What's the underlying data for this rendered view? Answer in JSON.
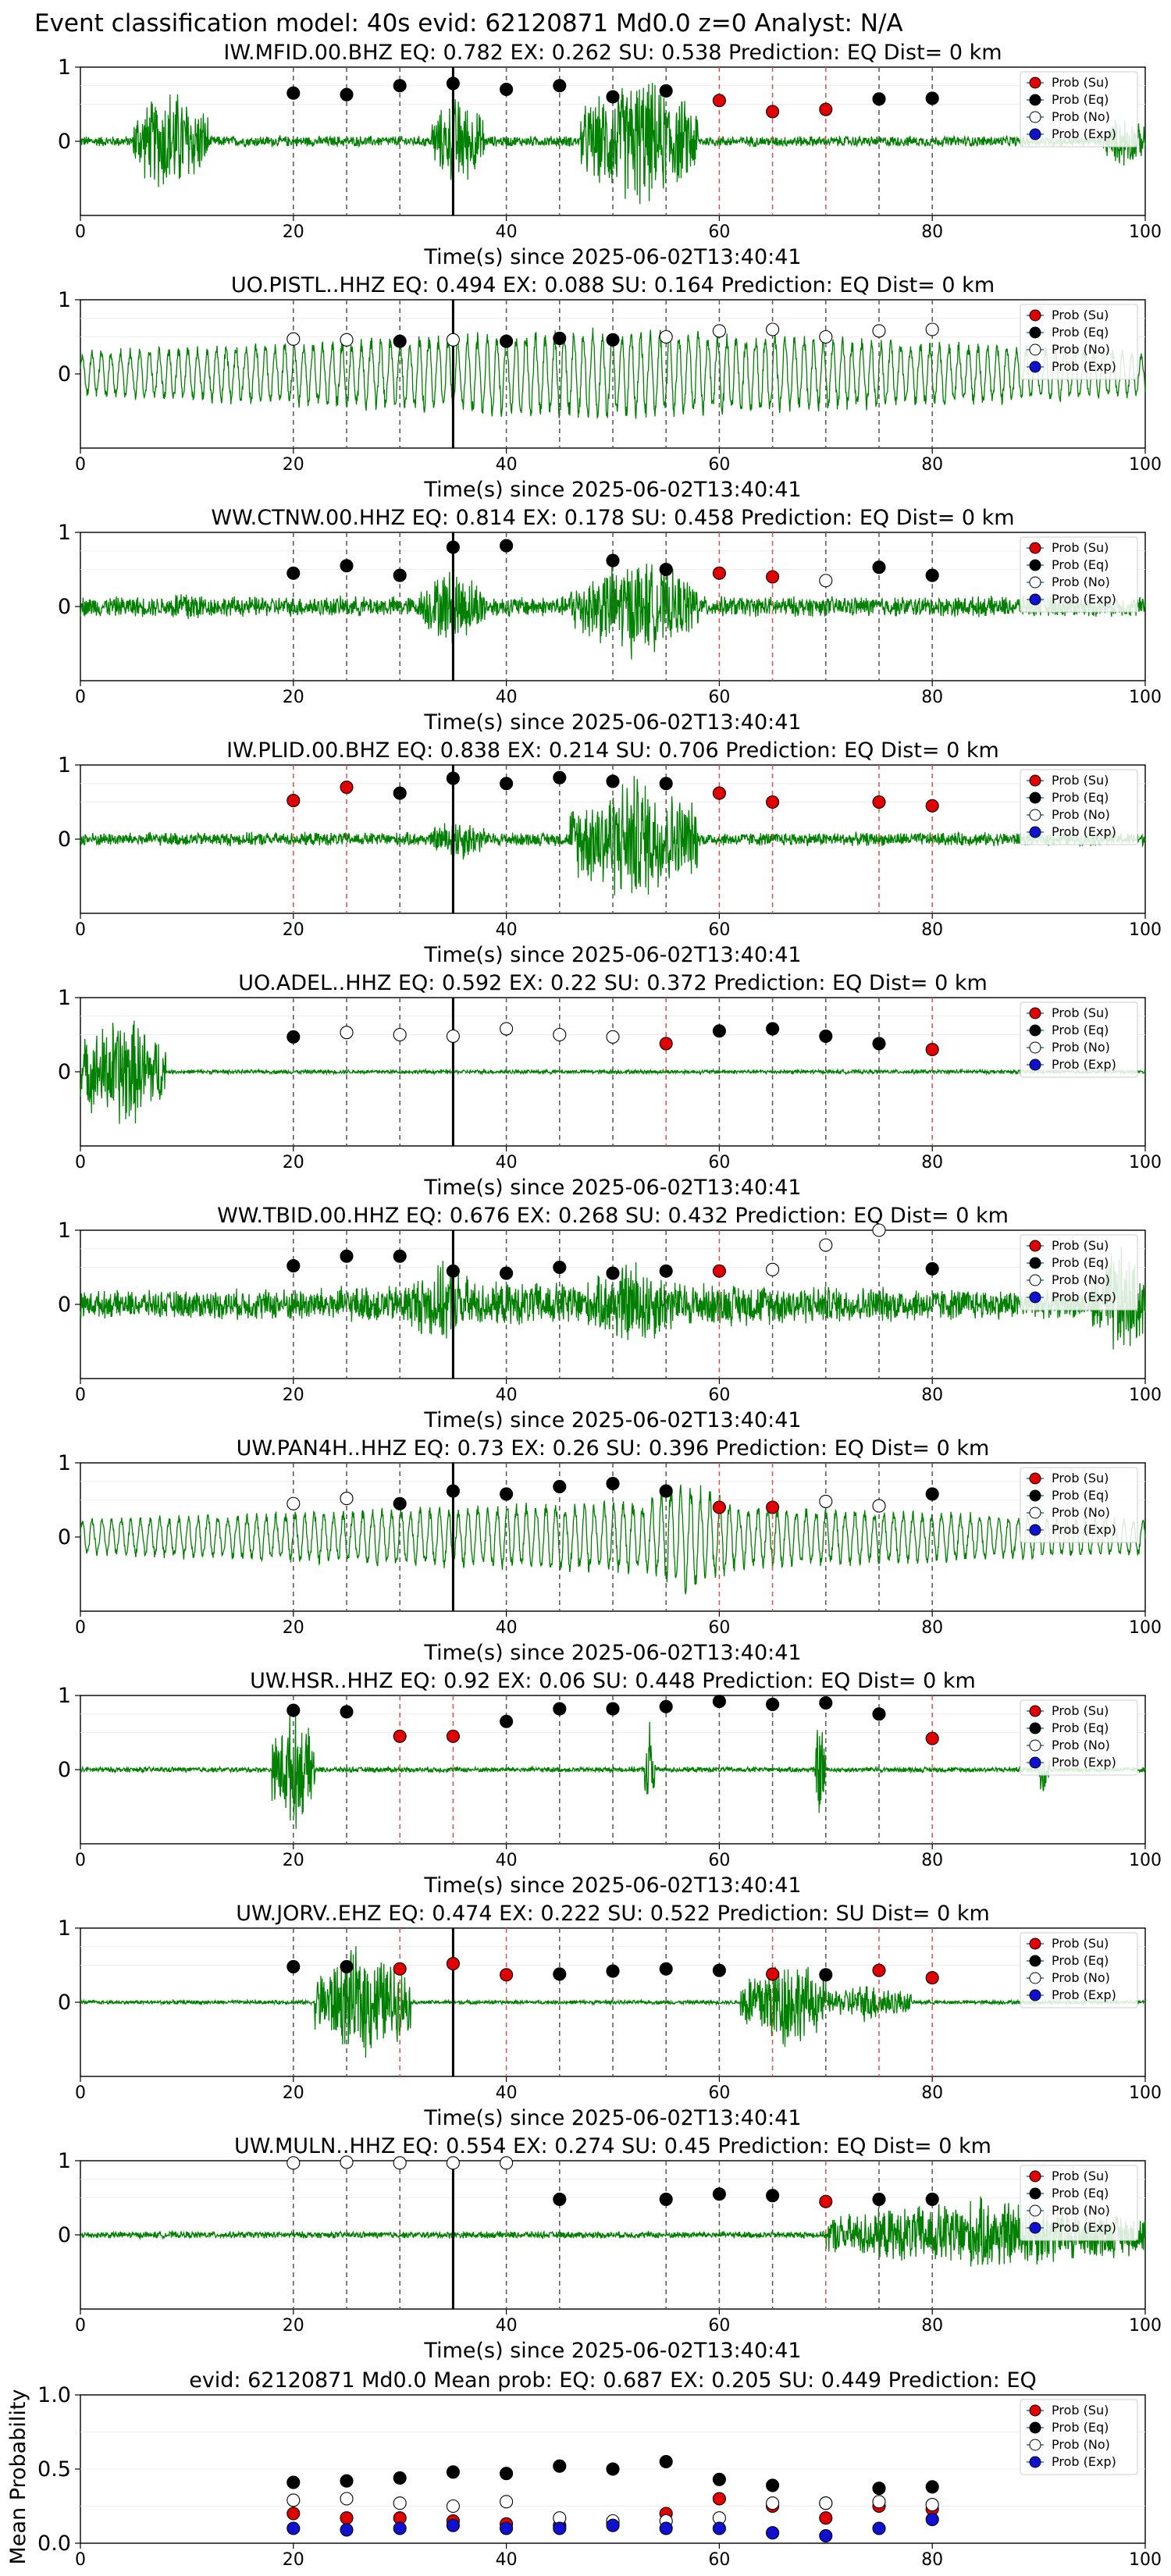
{
  "suptitle": "Event classification model: 40s evid: 62120871 Md0.0 z=0 Analyst: N/A",
  "xlabel": "Time(s) since 2025-06-02T13:40:41",
  "legend": [
    {
      "label": "Prob (Su)",
      "color": "#e00000",
      "fill": "red"
    },
    {
      "label": "Prob (Eq)",
      "color": "#000000",
      "fill": "black"
    },
    {
      "label": "Prob (No)",
      "color": "#ffffff",
      "fill": "white"
    },
    {
      "label": "Prob (Exp)",
      "color": "#1010d0",
      "fill": "blue"
    }
  ],
  "colors": {
    "waveform": "#008000",
    "su": "#e00000",
    "eq": "#000000",
    "no": "#ffffff",
    "exp": "#1010d0"
  },
  "chart_data": [
    {
      "type": "scatter",
      "title": "IW.MFID.00.BHZ   EQ: 0.782  EX: 0.262  SU: 0.538   Prediction: EQ    Dist= 0 km",
      "xlim": [
        0,
        100
      ],
      "ylim": [
        -1,
        1
      ],
      "xticks": [
        0,
        20,
        40,
        60,
        80,
        100
      ],
      "yticks": [
        0,
        1
      ],
      "pick_line": 35,
      "waveform": {
        "activity": [
          [
            5,
            12,
            0.85
          ],
          [
            33,
            38,
            0.7
          ],
          [
            47,
            58,
            1.0
          ],
          [
            96,
            100,
            0.4
          ]
        ],
        "base": 0.08
      },
      "points": [
        [
          20,
          0.65,
          "eq"
        ],
        [
          25,
          0.63,
          "eq"
        ],
        [
          30,
          0.75,
          "eq"
        ],
        [
          35,
          0.78,
          "eq"
        ],
        [
          40,
          0.7,
          "eq"
        ],
        [
          45,
          0.75,
          "eq"
        ],
        [
          50,
          0.6,
          "eq"
        ],
        [
          55,
          0.68,
          "eq"
        ],
        [
          60,
          0.55,
          "su"
        ],
        [
          65,
          0.4,
          "su"
        ],
        [
          70,
          0.43,
          "su"
        ],
        [
          75,
          0.57,
          "eq"
        ],
        [
          80,
          0.58,
          "eq"
        ]
      ]
    },
    {
      "type": "scatter",
      "title": "UO.PISTL..HHZ   EQ: 0.494  EX: 0.088  SU: 0.164   Prediction: EQ    Dist= 0 km",
      "xlim": [
        0,
        100
      ],
      "ylim": [
        -1,
        1
      ],
      "xticks": [
        0,
        20,
        40,
        60,
        80,
        100
      ],
      "yticks": [
        0,
        1
      ],
      "pick_line": 35,
      "waveform": {
        "activity": [
          [
            0,
            100,
            0.7
          ]
        ],
        "base": 0.2,
        "oscillatory": true
      },
      "points": [
        [
          20,
          0.47,
          "no"
        ],
        [
          25,
          0.46,
          "no"
        ],
        [
          30,
          0.44,
          "eq"
        ],
        [
          35,
          0.46,
          "no"
        ],
        [
          40,
          0.44,
          "eq"
        ],
        [
          45,
          0.48,
          "eq"
        ],
        [
          50,
          0.46,
          "eq"
        ],
        [
          55,
          0.5,
          "no"
        ],
        [
          60,
          0.58,
          "no"
        ],
        [
          65,
          0.6,
          "no"
        ],
        [
          70,
          0.5,
          "no"
        ],
        [
          75,
          0.58,
          "no"
        ],
        [
          80,
          0.6,
          "no"
        ]
      ]
    },
    {
      "type": "scatter",
      "title": "WW.CTNW.00.HHZ   EQ: 0.814  EX: 0.178  SU: 0.458   Prediction: EQ    Dist= 0 km",
      "xlim": [
        0,
        100
      ],
      "ylim": [
        -1,
        1
      ],
      "xticks": [
        0,
        20,
        40,
        60,
        80,
        100
      ],
      "yticks": [
        0,
        1
      ],
      "pick_line": 35,
      "waveform": {
        "activity": [
          [
            8,
            12,
            0.3
          ],
          [
            32,
            38,
            0.6
          ],
          [
            46,
            58,
            0.75
          ]
        ],
        "base": 0.15
      },
      "points": [
        [
          20,
          0.45,
          "eq"
        ],
        [
          25,
          0.55,
          "eq"
        ],
        [
          30,
          0.42,
          "eq"
        ],
        [
          35,
          0.8,
          "eq"
        ],
        [
          40,
          0.82,
          "eq"
        ],
        [
          50,
          0.62,
          "eq"
        ],
        [
          55,
          0.5,
          "eq"
        ],
        [
          60,
          0.45,
          "su"
        ],
        [
          65,
          0.4,
          "su"
        ],
        [
          70,
          0.35,
          "no"
        ],
        [
          75,
          0.53,
          "eq"
        ],
        [
          80,
          0.42,
          "eq"
        ]
      ]
    },
    {
      "type": "scatter",
      "title": "IW.PLID.00.BHZ   EQ: 0.838  EX: 0.214  SU: 0.706   Prediction: EQ    Dist= 0 km",
      "xlim": [
        0,
        100
      ],
      "ylim": [
        -1,
        1
      ],
      "xticks": [
        0,
        20,
        40,
        60,
        80,
        100
      ],
      "yticks": [
        0,
        1
      ],
      "pick_line": 35,
      "waveform": {
        "activity": [
          [
            33,
            38,
            0.35
          ],
          [
            46,
            58,
            1.0
          ]
        ],
        "base": 0.1
      },
      "points": [
        [
          20,
          0.52,
          "su"
        ],
        [
          25,
          0.7,
          "su"
        ],
        [
          30,
          0.62,
          "eq"
        ],
        [
          35,
          0.82,
          "eq"
        ],
        [
          40,
          0.75,
          "eq"
        ],
        [
          45,
          0.83,
          "eq"
        ],
        [
          50,
          0.78,
          "eq"
        ],
        [
          55,
          0.75,
          "eq"
        ],
        [
          60,
          0.62,
          "su"
        ],
        [
          65,
          0.5,
          "su"
        ],
        [
          75,
          0.5,
          "su"
        ],
        [
          80,
          0.45,
          "su"
        ]
      ]
    },
    {
      "type": "scatter",
      "title": "UO.ADEL..HHZ   EQ: 0.592  EX: 0.22  SU: 0.372   Prediction: EQ    Dist= 0 km",
      "xlim": [
        0,
        100
      ],
      "ylim": [
        -1,
        1
      ],
      "xticks": [
        0,
        20,
        40,
        60,
        80,
        100
      ],
      "yticks": [
        0,
        1
      ],
      "pick_line": 35,
      "waveform": {
        "activity": [
          [
            0,
            8,
            0.9
          ]
        ],
        "base": 0.03
      },
      "points": [
        [
          20,
          0.47,
          "eq"
        ],
        [
          25,
          0.53,
          "no"
        ],
        [
          30,
          0.5,
          "no"
        ],
        [
          35,
          0.48,
          "no"
        ],
        [
          40,
          0.58,
          "no"
        ],
        [
          45,
          0.5,
          "no"
        ],
        [
          50,
          0.47,
          "no"
        ],
        [
          55,
          0.38,
          "su"
        ],
        [
          60,
          0.55,
          "eq"
        ],
        [
          65,
          0.58,
          "eq"
        ],
        [
          70,
          0.48,
          "eq"
        ],
        [
          75,
          0.38,
          "eq"
        ],
        [
          80,
          0.3,
          "su"
        ]
      ]
    },
    {
      "type": "scatter",
      "title": "WW.TBID.00.HHZ   EQ: 0.676  EX: 0.268  SU: 0.432   Prediction: EQ    Dist= 0 km",
      "xlim": [
        0,
        100
      ],
      "ylim": [
        -1,
        1
      ],
      "xticks": [
        0,
        20,
        40,
        60,
        80,
        100
      ],
      "yticks": [
        0,
        1
      ],
      "pick_line": 35,
      "waveform": {
        "activity": [
          [
            0,
            100,
            0.35
          ],
          [
            30,
            38,
            0.6
          ],
          [
            48,
            56,
            0.7
          ],
          [
            95,
            100,
            0.9
          ]
        ],
        "base": 0.2
      },
      "points": [
        [
          20,
          0.52,
          "eq"
        ],
        [
          25,
          0.65,
          "eq"
        ],
        [
          30,
          0.65,
          "eq"
        ],
        [
          35,
          0.45,
          "eq"
        ],
        [
          40,
          0.42,
          "eq"
        ],
        [
          45,
          0.5,
          "eq"
        ],
        [
          50,
          0.42,
          "eq"
        ],
        [
          55,
          0.45,
          "eq"
        ],
        [
          60,
          0.45,
          "su"
        ],
        [
          65,
          0.47,
          "no"
        ],
        [
          70,
          0.8,
          "no"
        ],
        [
          75,
          1.0,
          "no"
        ],
        [
          80,
          0.48,
          "eq"
        ]
      ]
    },
    {
      "type": "scatter",
      "title": "UW.PAN4H..HHZ   EQ: 0.73  EX: 0.26  SU: 0.396   Prediction: EQ    Dist= 0 km",
      "xlim": [
        0,
        100
      ],
      "ylim": [
        -1,
        1
      ],
      "xticks": [
        0,
        20,
        40,
        60,
        80,
        100
      ],
      "yticks": [
        0,
        1
      ],
      "pick_line": 35,
      "waveform": {
        "activity": [
          [
            0,
            100,
            0.55
          ],
          [
            52,
            62,
            0.9
          ]
        ],
        "base": 0.25,
        "oscillatory": true
      },
      "points": [
        [
          20,
          0.45,
          "no"
        ],
        [
          25,
          0.52,
          "no"
        ],
        [
          30,
          0.45,
          "eq"
        ],
        [
          35,
          0.62,
          "eq"
        ],
        [
          40,
          0.58,
          "eq"
        ],
        [
          45,
          0.68,
          "eq"
        ],
        [
          50,
          0.72,
          "eq"
        ],
        [
          55,
          0.62,
          "eq"
        ],
        [
          60,
          0.4,
          "su"
        ],
        [
          65,
          0.4,
          "su"
        ],
        [
          70,
          0.48,
          "no"
        ],
        [
          75,
          0.42,
          "no"
        ],
        [
          80,
          0.58,
          "eq"
        ]
      ]
    },
    {
      "type": "scatter",
      "title": "UW.HSR..HHZ   EQ: 0.92  EX: 0.06  SU: 0.448   Prediction: EQ    Dist= 0 km",
      "xlim": [
        0,
        100
      ],
      "ylim": [
        -1,
        1
      ],
      "xticks": [
        0,
        20,
        40,
        60,
        80,
        100
      ],
      "yticks": [
        0,
        1
      ],
      "pick_line": null,
      "waveform": {
        "activity": [
          [
            18,
            22,
            0.9
          ],
          [
            53,
            54,
            0.8
          ],
          [
            69,
            70,
            0.9
          ],
          [
            90,
            91,
            0.5
          ]
        ],
        "base": 0.04
      },
      "points": [
        [
          20,
          0.8,
          "eq"
        ],
        [
          25,
          0.78,
          "eq"
        ],
        [
          30,
          0.45,
          "su"
        ],
        [
          35,
          0.45,
          "su"
        ],
        [
          40,
          0.65,
          "eq"
        ],
        [
          45,
          0.82,
          "eq"
        ],
        [
          50,
          0.82,
          "eq"
        ],
        [
          55,
          0.85,
          "eq"
        ],
        [
          60,
          0.92,
          "eq"
        ],
        [
          65,
          0.88,
          "eq"
        ],
        [
          70,
          0.9,
          "eq"
        ],
        [
          75,
          0.75,
          "eq"
        ],
        [
          80,
          0.42,
          "su"
        ]
      ]
    },
    {
      "type": "scatter",
      "title": "UW.JORV..EHZ   EQ: 0.474  EX: 0.222  SU: 0.522   Prediction: SU    Dist= 0 km",
      "xlim": [
        0,
        100
      ],
      "ylim": [
        -1,
        1
      ],
      "xticks": [
        0,
        20,
        40,
        60,
        80,
        100
      ],
      "yticks": [
        0,
        1
      ],
      "pick_line": 35,
      "waveform": {
        "activity": [
          [
            22,
            31,
            0.85
          ],
          [
            62,
            70,
            0.75
          ],
          [
            70,
            78,
            0.3
          ]
        ],
        "base": 0.03
      },
      "points": [
        [
          20,
          0.48,
          "eq"
        ],
        [
          25,
          0.48,
          "eq"
        ],
        [
          30,
          0.45,
          "su"
        ],
        [
          35,
          0.52,
          "su"
        ],
        [
          40,
          0.37,
          "su"
        ],
        [
          45,
          0.38,
          "eq"
        ],
        [
          50,
          0.42,
          "eq"
        ],
        [
          55,
          0.45,
          "eq"
        ],
        [
          60,
          0.43,
          "eq"
        ],
        [
          65,
          0.38,
          "su"
        ],
        [
          70,
          0.37,
          "eq"
        ],
        [
          75,
          0.43,
          "su"
        ],
        [
          80,
          0.33,
          "su"
        ]
      ]
    },
    {
      "type": "scatter",
      "title": "UW.MULN..HHZ   EQ: 0.554  EX: 0.274  SU: 0.45   Prediction: EQ    Dist= 0 km",
      "xlim": [
        0,
        100
      ],
      "ylim": [
        -1,
        1
      ],
      "xticks": [
        0,
        20,
        40,
        60,
        80,
        100
      ],
      "yticks": [
        0,
        1
      ],
      "pick_line": 35,
      "waveform": {
        "activity": [
          [
            70,
            100,
            0.55
          ]
        ],
        "base": 0.05
      },
      "points": [
        [
          20,
          0.97,
          "no"
        ],
        [
          25,
          0.98,
          "no"
        ],
        [
          30,
          0.97,
          "no"
        ],
        [
          35,
          0.97,
          "no"
        ],
        [
          40,
          0.97,
          "no"
        ],
        [
          45,
          0.48,
          "eq"
        ],
        [
          55,
          0.48,
          "eq"
        ],
        [
          60,
          0.55,
          "eq"
        ],
        [
          65,
          0.53,
          "eq"
        ],
        [
          70,
          0.45,
          "su"
        ],
        [
          75,
          0.48,
          "eq"
        ],
        [
          80,
          0.48,
          "eq"
        ]
      ]
    },
    {
      "type": "scatter",
      "title": "evid: 62120871  Md0.0   Mean prob:   EQ: 0.687  EX: 0.205  SU: 0.449   Prediction: EQ",
      "xlim": [
        0,
        100
      ],
      "ylim": [
        0,
        1
      ],
      "xticks": [
        0,
        20,
        40,
        60,
        80,
        100
      ],
      "yticks": [
        0.0,
        0.5,
        1.0
      ],
      "ytick_labels": [
        "0.0",
        "0.5",
        "1.0"
      ],
      "ylabel": "Mean Probability",
      "series": [
        {
          "name": "Prob (Su)",
          "cls": "su",
          "x": [
            20,
            25,
            30,
            35,
            40,
            45,
            50,
            55,
            60,
            65,
            70,
            75,
            80
          ],
          "y": [
            0.2,
            0.17,
            0.17,
            0.15,
            0.13,
            0.12,
            0.13,
            0.2,
            0.3,
            0.25,
            0.17,
            0.25,
            0.23
          ]
        },
        {
          "name": "Prob (Eq)",
          "cls": "eq",
          "x": [
            20,
            25,
            30,
            35,
            40,
            45,
            50,
            55,
            60,
            65,
            70,
            75,
            80
          ],
          "y": [
            0.41,
            0.42,
            0.44,
            0.48,
            0.47,
            0.52,
            0.5,
            0.55,
            0.43,
            0.39,
            0.27,
            0.37,
            0.38
          ]
        },
        {
          "name": "Prob (No)",
          "cls": "no",
          "x": [
            20,
            25,
            30,
            35,
            40,
            45,
            50,
            55,
            60,
            65,
            70,
            75,
            80
          ],
          "y": [
            0.29,
            0.3,
            0.27,
            0.25,
            0.28,
            0.17,
            0.15,
            0.15,
            0.17,
            0.27,
            0.27,
            0.28,
            0.26
          ]
        },
        {
          "name": "Prob (Exp)",
          "cls": "exp",
          "x": [
            20,
            25,
            30,
            35,
            40,
            45,
            50,
            55,
            60,
            65,
            70,
            75,
            80
          ],
          "y": [
            0.1,
            0.09,
            0.1,
            0.12,
            0.1,
            0.1,
            0.12,
            0.1,
            0.1,
            0.07,
            0.05,
            0.1,
            0.16
          ]
        }
      ],
      "dot_x": [
        20,
        25,
        30,
        35,
        40,
        45,
        50,
        55,
        60,
        65,
        70,
        75,
        80
      ]
    }
  ]
}
